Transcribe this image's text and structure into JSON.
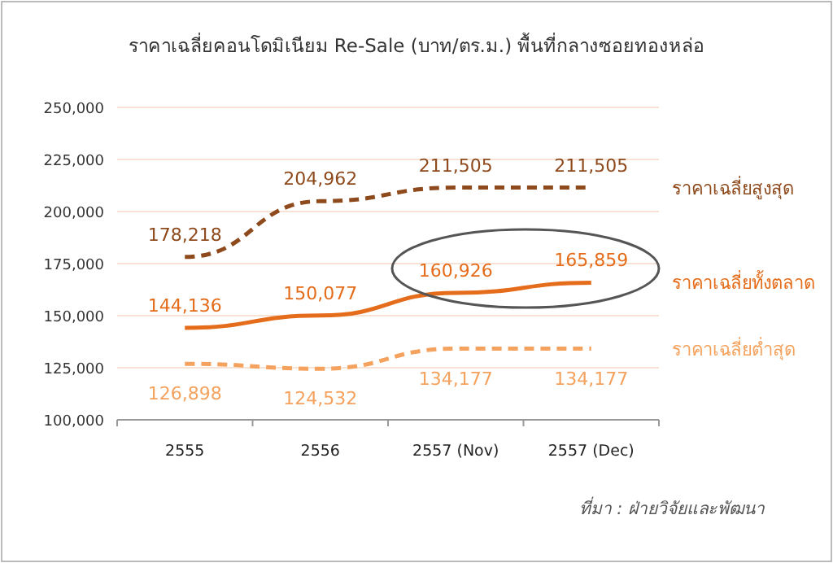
{
  "chart_data": {
    "type": "line",
    "title": "ราคาเฉลี่ยคอนโดมิเนียม Re-Sale (บาท/ตร.ม.) พื้นที่กลางซอยทองหล่อ",
    "categories": [
      "2555",
      "2556",
      "2557 (Nov)",
      "2557 (Dec)"
    ],
    "series": [
      {
        "name": "ราคาเฉลี่ยสูงสุด",
        "color": "#8e4a1c",
        "line_style": "dashed",
        "values": [
          178218,
          204962,
          211505,
          211505
        ],
        "value_labels": [
          "178,218",
          "204,962",
          "211,505",
          "211,505"
        ]
      },
      {
        "name": "ราคาเฉลี่ยทั้งตลาด",
        "color": "#e46c1a",
        "line_style": "solid",
        "values": [
          144136,
          150077,
          160926,
          165859
        ],
        "value_labels": [
          "144,136",
          "150,077",
          "160,926",
          "165,859"
        ]
      },
      {
        "name": "ราคาเฉลี่ยต่ำสุด",
        "color": "#f4a25e",
        "line_style": "dashed",
        "values": [
          126898,
          124532,
          134177,
          134177
        ],
        "value_labels": [
          "126,898",
          "124,532",
          "134,177",
          "134,177"
        ]
      }
    ],
    "ylim": [
      100000,
      250000
    ],
    "yticks": [
      {
        "value": 100000,
        "label": "100,000"
      },
      {
        "value": 125000,
        "label": "125,000"
      },
      {
        "value": 150000,
        "label": "150,000"
      },
      {
        "value": 175000,
        "label": "175,000"
      },
      {
        "value": 200000,
        "label": "200,000"
      },
      {
        "value": 225000,
        "label": "225,000"
      },
      {
        "value": 250000,
        "label": "250,000"
      }
    ],
    "grid": "y",
    "marker": "none",
    "annotations": [
      "ที่มา : ฝ่ายวิจัยและพัฒนา"
    ]
  }
}
